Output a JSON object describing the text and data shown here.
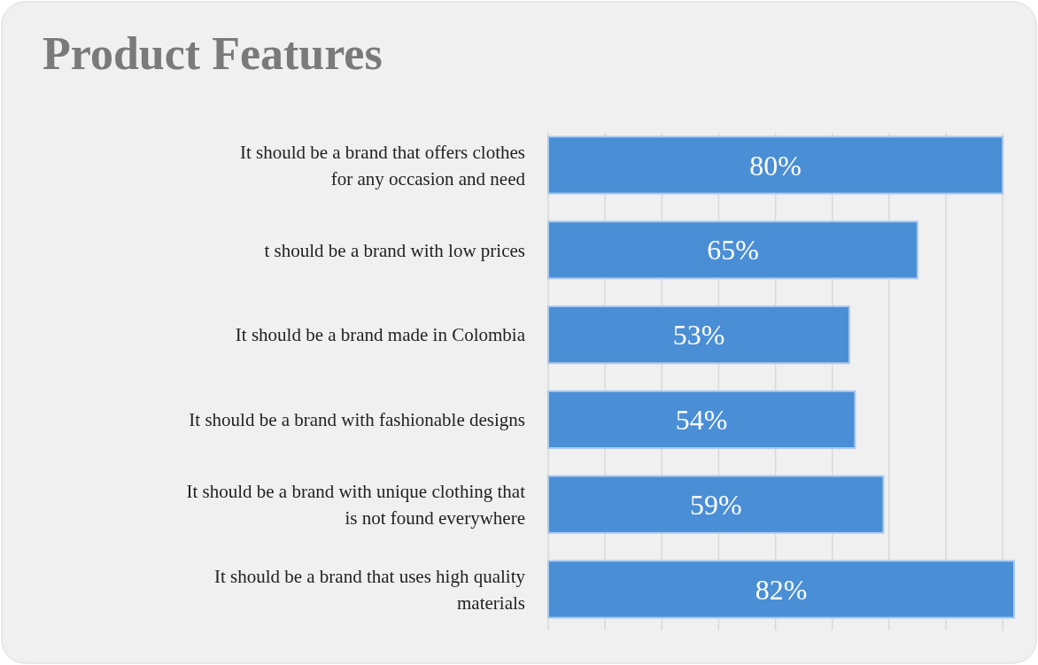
{
  "chart_data": {
    "type": "bar",
    "orientation": "horizontal",
    "title": "Product Features",
    "categories": [
      "It should be a brand that offers clothes\nfor any occasion and need",
      "t should be a brand with low prices",
      "It should be a brand made in Colombia",
      "It should be a brand with fashionable designs",
      "It should be a brand with unique clothing that\nis not found everywhere",
      "It should be a brand that uses high quality\nmaterials"
    ],
    "values": [
      80,
      65,
      53,
      54,
      59,
      82
    ],
    "value_labels": [
      "80%",
      "65%",
      "53%",
      "54%",
      "59%",
      "82%"
    ],
    "color": "#4a8ed6",
    "xlim": [
      0,
      82
    ],
    "xticks": [
      {
        "value": 0,
        "label": null
      },
      {
        "value": 10,
        "label": null
      },
      {
        "value": 20,
        "label": null
      },
      {
        "value": 30,
        "label": null
      },
      {
        "value": 40,
        "label": null
      },
      {
        "value": 50,
        "label": null
      },
      {
        "value": 60,
        "label": null
      },
      {
        "value": 70,
        "label": null
      },
      {
        "value": 80,
        "label": null
      }
    ],
    "grid": "x",
    "tick_labels": "y"
  }
}
